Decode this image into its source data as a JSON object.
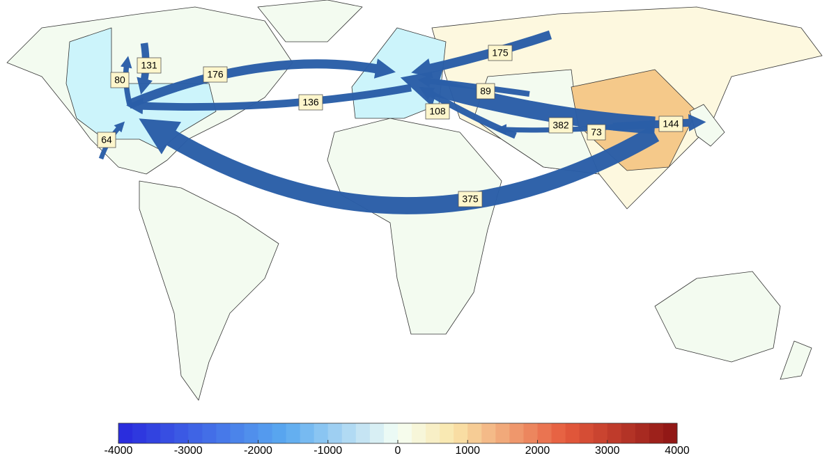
{
  "flows": [
    {
      "value": 175
    },
    {
      "value": 89
    },
    {
      "value": 108
    },
    {
      "value": 382
    },
    {
      "value": 73
    },
    {
      "value": 144
    },
    {
      "value": 375
    },
    {
      "value": 176
    },
    {
      "value": 136
    },
    {
      "value": 80
    },
    {
      "value": 131
    },
    {
      "value": 64
    }
  ],
  "colorbar": {
    "range": [
      -4000,
      4000
    ],
    "ticks": [
      -4000,
      -3000,
      -2000,
      -1000,
      0,
      1000,
      2000,
      3000,
      4000
    ]
  }
}
